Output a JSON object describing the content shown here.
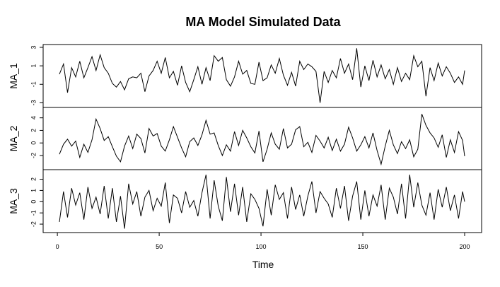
{
  "chart_data": {
    "type": "line",
    "title": "MA Model Simulated Data",
    "xlabel": "Time",
    "xlim": [
      1,
      200
    ],
    "xticks": [
      0,
      50,
      100,
      150,
      200
    ],
    "colors": {
      "line": "#000000",
      "frame": "#000000",
      "background": "#ffffff"
    },
    "panels": [
      {
        "name": "MA_1",
        "ylim": [
          -3.2,
          3.0
        ],
        "yticks": [
          -3,
          -1,
          1,
          3
        ],
        "x": [
          1,
          3,
          5,
          7,
          9,
          11,
          13,
          15,
          17,
          19,
          21,
          23,
          25,
          27,
          29,
          31,
          33,
          35,
          37,
          39,
          41,
          43,
          45,
          47,
          49,
          51,
          53,
          55,
          57,
          59,
          61,
          63,
          65,
          67,
          69,
          71,
          73,
          75,
          77,
          79,
          81,
          83,
          85,
          87,
          89,
          91,
          93,
          95,
          97,
          99,
          101,
          103,
          105,
          107,
          109,
          111,
          113,
          115,
          117,
          119,
          121,
          123,
          125,
          127,
          129,
          131,
          133,
          135,
          137,
          139,
          141,
          143,
          145,
          147,
          149,
          151,
          153,
          155,
          157,
          159,
          161,
          163,
          165,
          167,
          169,
          171,
          173,
          175,
          177,
          179,
          181,
          183,
          185,
          187,
          189,
          191,
          193,
          195,
          197,
          199,
          200
        ],
        "values": [
          0.1,
          1.2,
          -1.9,
          0.8,
          -0.2,
          1.5,
          -0.3,
          0.8,
          2.0,
          0.5,
          2.2,
          0.8,
          0.2,
          -0.9,
          -1.3,
          -0.7,
          -1.6,
          -0.4,
          -0.2,
          -0.3,
          0.2,
          -1.8,
          -0.1,
          0.5,
          1.5,
          0.2,
          1.9,
          -0.3,
          0.4,
          -1.1,
          1.0,
          -0.8,
          -1.8,
          -0.5,
          0.9,
          -1.0,
          0.8,
          -0.6,
          2.1,
          1.5,
          1.9,
          -0.5,
          -1.2,
          -0.2,
          1.5,
          0.1,
          0.5,
          -0.9,
          -1.0,
          1.4,
          -0.6,
          -0.3,
          1.1,
          0.2,
          1.8,
          0.0,
          -1.1,
          0.3,
          -1.2,
          1.5,
          0.6,
          1.2,
          0.9,
          0.4,
          -3.0,
          0.4,
          -0.8,
          0.5,
          -0.3,
          1.8,
          0.2,
          1.2,
          -0.5,
          2.9,
          -1.3,
          1.0,
          -0.6,
          1.6,
          -0.2,
          1.1,
          -0.4,
          0.6,
          -1.0,
          0.8,
          -0.7,
          0.2,
          -0.5,
          2.1,
          0.9,
          1.5,
          -2.3,
          0.8,
          -0.6,
          1.3,
          -0.1,
          0.9,
          0.2,
          -0.8,
          -0.2,
          -1.0,
          0.5
        ]
      },
      {
        "name": "MA_2",
        "ylim": [
          -3.8,
          5.2
        ],
        "yticks": [
          -2,
          0,
          2,
          4
        ],
        "x": [
          1,
          3,
          5,
          7,
          9,
          11,
          13,
          15,
          17,
          19,
          21,
          23,
          25,
          27,
          29,
          31,
          33,
          35,
          37,
          39,
          41,
          43,
          45,
          47,
          49,
          51,
          53,
          55,
          57,
          59,
          61,
          63,
          65,
          67,
          69,
          71,
          73,
          75,
          77,
          79,
          81,
          83,
          85,
          87,
          89,
          91,
          93,
          95,
          97,
          99,
          101,
          103,
          105,
          107,
          109,
          111,
          113,
          115,
          117,
          119,
          121,
          123,
          125,
          127,
          129,
          131,
          133,
          135,
          137,
          139,
          141,
          143,
          145,
          147,
          149,
          151,
          153,
          155,
          157,
          159,
          161,
          163,
          165,
          167,
          169,
          171,
          173,
          175,
          177,
          179,
          181,
          183,
          185,
          187,
          189,
          191,
          193,
          195,
          197,
          199,
          200
        ],
        "values": [
          -1.8,
          -0.2,
          0.6,
          -0.5,
          0.3,
          -2.3,
          -0.2,
          -1.5,
          0.5,
          3.8,
          2.3,
          0.4,
          1.0,
          -0.6,
          -2.1,
          -3.0,
          -0.5,
          1.1,
          -0.9,
          1.4,
          0.7,
          -1.6,
          2.3,
          1.1,
          1.5,
          -0.5,
          -1.3,
          0.5,
          2.6,
          0.9,
          -0.8,
          -2.2,
          0.2,
          0.8,
          -0.4,
          1.3,
          3.6,
          1.4,
          1.6,
          -0.4,
          -2.0,
          -0.3,
          -1.3,
          1.8,
          -0.4,
          2.0,
          0.8,
          -0.6,
          -1.6,
          1.9,
          -3.0,
          -1.0,
          1.6,
          -0.2,
          -1.0,
          2.3,
          -0.8,
          -0.2,
          2.1,
          2.6,
          -0.6,
          0.1,
          -1.5,
          1.2,
          0.3,
          -0.8,
          0.9,
          -1.2,
          0.6,
          -1.3,
          -0.2,
          2.5,
          0.8,
          -1.3,
          -0.3,
          1.0,
          -0.8,
          1.6,
          -1.2,
          -3.4,
          -0.5,
          2.0,
          -0.3,
          -1.7,
          0.2,
          -0.9,
          0.5,
          -2.2,
          -1.0,
          4.6,
          2.8,
          1.6,
          0.8,
          -0.7,
          1.3,
          -2.3,
          0.5,
          -1.5,
          1.8,
          0.4,
          -2.1
        ]
      },
      {
        "name": "MA_3",
        "ylim": [
          -2.5,
          2.6
        ],
        "yticks": [
          -2,
          -1,
          0,
          1,
          2
        ],
        "x": [
          1,
          3,
          5,
          7,
          9,
          11,
          13,
          15,
          17,
          19,
          21,
          23,
          25,
          27,
          29,
          31,
          33,
          35,
          37,
          39,
          41,
          43,
          45,
          47,
          49,
          51,
          53,
          55,
          57,
          59,
          61,
          63,
          65,
          67,
          69,
          71,
          73,
          75,
          77,
          79,
          81,
          83,
          85,
          87,
          89,
          91,
          93,
          95,
          97,
          99,
          101,
          103,
          105,
          107,
          109,
          111,
          113,
          115,
          117,
          119,
          121,
          123,
          125,
          127,
          129,
          131,
          133,
          135,
          137,
          139,
          141,
          143,
          145,
          147,
          149,
          151,
          153,
          155,
          157,
          159,
          161,
          163,
          165,
          167,
          169,
          171,
          173,
          175,
          177,
          179,
          181,
          183,
          185,
          187,
          189,
          191,
          193,
          195,
          197,
          199,
          200
        ],
        "values": [
          -1.8,
          0.9,
          -1.4,
          1.2,
          -0.3,
          0.8,
          -1.6,
          1.3,
          -0.6,
          0.4,
          -1.1,
          1.4,
          -1.5,
          1.2,
          -1.8,
          0.5,
          -2.4,
          1.6,
          -0.2,
          0.9,
          -1.3,
          0.4,
          1.0,
          -0.8,
          0.3,
          -0.4,
          1.7,
          -1.9,
          0.6,
          0.3,
          -1.0,
          0.9,
          -0.5,
          0.1,
          -1.3,
          0.8,
          2.4,
          -1.5,
          1.9,
          -0.4,
          -1.7,
          2.2,
          -0.9,
          1.6,
          -1.2,
          1.3,
          -1.8,
          0.7,
          0.2,
          -0.6,
          -2.2,
          1.1,
          -1.2,
          1.5,
          0.2,
          0.8,
          -1.5,
          1.3,
          -0.7,
          0.6,
          -1.3,
          0.5,
          1.8,
          -1.0,
          0.9,
          0.3,
          -0.2,
          -1.4,
          1.2,
          -0.6,
          1.4,
          -1.7,
          0.5,
          1.8,
          -1.6,
          1.0,
          -1.3,
          0.6,
          -0.4,
          1.5,
          -1.6,
          1.2,
          0.4,
          -1.1,
          1.6,
          -1.5,
          2.4,
          -0.5,
          1.7,
          -0.3,
          -1.2,
          0.8,
          -1.6,
          1.1,
          -0.5,
          1.3,
          -0.8,
          0.6,
          -1.5,
          0.9,
          0.0
        ]
      }
    ]
  }
}
